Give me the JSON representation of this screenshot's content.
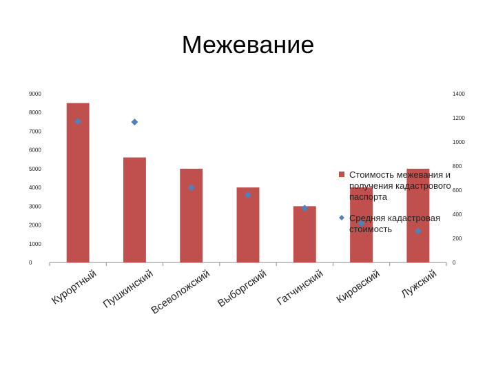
{
  "chart_data": {
    "type": "bar",
    "title": "Межевание",
    "categories": [
      "Курортный",
      "Пушкинский",
      "Всеволожский",
      "Выборгский",
      "Гатчинский",
      "Кировский",
      "Лужский"
    ],
    "series": [
      {
        "name": "Стоимость межевания и получения кадастрового паспорта",
        "type": "bar",
        "axis": "left",
        "color": "#c0504d",
        "values": [
          8500,
          5600,
          5000,
          4000,
          3000,
          4000,
          5000
        ]
      },
      {
        "name": "Средняя кадастровая стоимость",
        "type": "scatter",
        "axis": "right",
        "color": "#4f81bd",
        "values": [
          1170,
          1165,
          620,
          560,
          450,
          325,
          260
        ]
      }
    ],
    "y_left": {
      "min": 0,
      "max": 9000,
      "step": 1000
    },
    "y_right": {
      "min": 0,
      "max": 1400,
      "step": 200
    },
    "legend_position": "right",
    "grid": false
  }
}
